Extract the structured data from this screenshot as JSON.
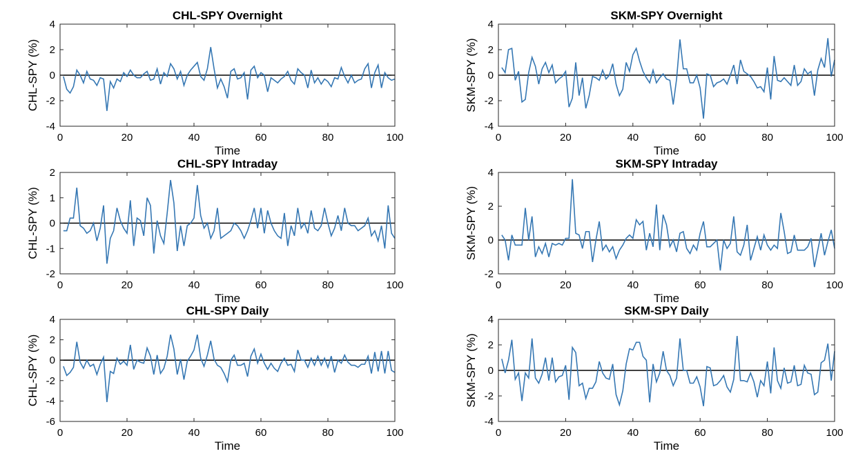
{
  "figure_title": "",
  "chart_data": [
    {
      "type": "line",
      "title": "CHL-SPY Overnight",
      "xlabel": "Time",
      "ylabel": "CHL-SPY (%)",
      "xlim": [
        0,
        100
      ],
      "ylim": [
        -4,
        4
      ],
      "xticks": [
        0,
        20,
        40,
        60,
        80,
        100
      ],
      "yticks": [
        -4,
        -2,
        0,
        2,
        4
      ],
      "line_color": "#3577B3",
      "zero_line_color": "#000000",
      "x": [
        1,
        2,
        3,
        4,
        5,
        6,
        7,
        8,
        9,
        10,
        11,
        12,
        13,
        14,
        15,
        16,
        17,
        18,
        19,
        20,
        21,
        22,
        23,
        24,
        25,
        26,
        27,
        28,
        29,
        30,
        31,
        32,
        33,
        34,
        35,
        36,
        37,
        38,
        39,
        40,
        41,
        42,
        43,
        44,
        45,
        46,
        47,
        48,
        49,
        50,
        51,
        52,
        53,
        54,
        55,
        56,
        57,
        58,
        59,
        60,
        61,
        62,
        63,
        64,
        65,
        66,
        67,
        68,
        69,
        70,
        71,
        72,
        73,
        74,
        75,
        76,
        77,
        78,
        79,
        80,
        81,
        82,
        83,
        84,
        85,
        86,
        87,
        88,
        89,
        90,
        91,
        92,
        93,
        94,
        95,
        96,
        97,
        98,
        99,
        100
      ],
      "values": [
        -0.1,
        -1.1,
        -1.4,
        -0.9,
        0.4,
        0.0,
        -0.6,
        0.3,
        -0.3,
        -0.4,
        -0.8,
        -0.2,
        -0.3,
        -2.8,
        -0.5,
        -1.0,
        -0.3,
        -0.5,
        0.2,
        -0.1,
        0.4,
        0.0,
        -0.2,
        -0.2,
        0.1,
        0.3,
        -0.4,
        -0.3,
        0.5,
        -0.7,
        0.2,
        -0.1,
        0.9,
        0.5,
        -0.3,
        0.3,
        -0.8,
        0.0,
        0.4,
        0.7,
        1.0,
        -0.1,
        -0.4,
        0.5,
        2.2,
        0.5,
        -1.0,
        -0.3,
        -0.9,
        -1.8,
        0.3,
        0.5,
        -0.3,
        -0.2,
        0.2,
        -1.9,
        0.4,
        0.7,
        -0.2,
        0.2,
        0.0,
        -1.3,
        -0.2,
        -0.4,
        -0.6,
        -0.3,
        -0.1,
        0.3,
        -0.4,
        -0.7,
        0.5,
        0.2,
        0.0,
        -1.0,
        0.4,
        -0.6,
        -0.2,
        -0.7,
        -0.3,
        -0.5,
        -0.9,
        -0.2,
        -0.3,
        0.6,
        -0.1,
        -0.6,
        0.0,
        -0.6,
        -0.4,
        -0.3,
        0.5,
        0.9,
        -1.0,
        0.2,
        0.8,
        -1.0,
        0.2,
        -0.2,
        -0.4,
        -0.3
      ]
    },
    {
      "type": "line",
      "title": "CHL-SPY Intraday",
      "xlabel": "Time",
      "ylabel": "CHL-SPY (%)",
      "xlim": [
        0,
        100
      ],
      "ylim": [
        -2,
        2
      ],
      "xticks": [
        0,
        20,
        40,
        60,
        80,
        100
      ],
      "yticks": [
        -2,
        -1,
        0,
        1,
        2
      ],
      "line_color": "#3577B3",
      "zero_line_color": "#000000",
      "x": [
        1,
        2,
        3,
        4,
        5,
        6,
        7,
        8,
        9,
        10,
        11,
        12,
        13,
        14,
        15,
        16,
        17,
        18,
        19,
        20,
        21,
        22,
        23,
        24,
        25,
        26,
        27,
        28,
        29,
        30,
        31,
        32,
        33,
        34,
        35,
        36,
        37,
        38,
        39,
        40,
        41,
        42,
        43,
        44,
        45,
        46,
        47,
        48,
        49,
        50,
        51,
        52,
        53,
        54,
        55,
        56,
        57,
        58,
        59,
        60,
        61,
        62,
        63,
        64,
        65,
        66,
        67,
        68,
        69,
        70,
        71,
        72,
        73,
        74,
        75,
        76,
        77,
        78,
        79,
        80,
        81,
        82,
        83,
        84,
        85,
        86,
        87,
        88,
        89,
        90,
        91,
        92,
        93,
        94,
        95,
        96,
        97,
        98,
        99,
        100
      ],
      "values": [
        -0.3,
        -0.3,
        0.2,
        0.2,
        1.4,
        -0.1,
        -0.2,
        -0.4,
        -0.3,
        0.0,
        -0.7,
        -0.2,
        0.7,
        -1.6,
        -0.6,
        -0.3,
        0.6,
        0.1,
        -0.2,
        -0.4,
        0.9,
        -0.9,
        0.2,
        0.1,
        -0.5,
        1.0,
        0.7,
        -1.2,
        0.1,
        -0.5,
        -0.8,
        0.4,
        1.7,
        0.8,
        -1.1,
        -0.1,
        -0.9,
        -0.1,
        0.0,
        0.2,
        1.5,
        0.3,
        -0.2,
        0.0,
        -0.6,
        -0.3,
        0.6,
        -0.6,
        -0.5,
        -0.4,
        -0.3,
        0.0,
        -0.1,
        -0.3,
        -0.6,
        -0.3,
        0.1,
        0.6,
        -0.2,
        0.6,
        -0.4,
        0.5,
        0.0,
        -0.3,
        -0.5,
        -0.6,
        0.4,
        -0.9,
        -0.1,
        -0.5,
        0.6,
        -0.2,
        0.0,
        -0.4,
        0.5,
        -0.2,
        -0.3,
        -0.1,
        0.6,
        0.0,
        -0.5,
        -0.2,
        0.3,
        -0.3,
        0.6,
        0.0,
        -0.1,
        -0.1,
        -0.3,
        -0.2,
        -0.1,
        0.2,
        -0.5,
        -0.3,
        -0.7,
        -0.1,
        -1.0,
        0.7,
        -0.4,
        -0.6
      ]
    },
    {
      "type": "line",
      "title": "CHL-SPY Daily",
      "xlabel": "Time",
      "ylabel": "CHL-SPY (%)",
      "xlim": [
        0,
        100
      ],
      "ylim": [
        -6,
        4
      ],
      "xticks": [
        0,
        20,
        40,
        60,
        80,
        100
      ],
      "yticks": [
        -6,
        -4,
        -2,
        0,
        2,
        4
      ],
      "line_color": "#3577B3",
      "zero_line_color": "#000000",
      "x": [
        1,
        2,
        3,
        4,
        5,
        6,
        7,
        8,
        9,
        10,
        11,
        12,
        13,
        14,
        15,
        16,
        17,
        18,
        19,
        20,
        21,
        22,
        23,
        24,
        25,
        26,
        27,
        28,
        29,
        30,
        31,
        32,
        33,
        34,
        35,
        36,
        37,
        38,
        39,
        40,
        41,
        42,
        43,
        44,
        45,
        46,
        47,
        48,
        49,
        50,
        51,
        52,
        53,
        54,
        55,
        56,
        57,
        58,
        59,
        60,
        61,
        62,
        63,
        64,
        65,
        66,
        67,
        68,
        69,
        70,
        71,
        72,
        73,
        74,
        75,
        76,
        77,
        78,
        79,
        80,
        81,
        82,
        83,
        84,
        85,
        86,
        87,
        88,
        89,
        90,
        91,
        92,
        93,
        94,
        95,
        96,
        97,
        98,
        99,
        100
      ],
      "values": [
        -0.6,
        -1.5,
        -1.2,
        -0.7,
        1.8,
        -0.2,
        -0.8,
        0.0,
        -0.6,
        -0.4,
        -1.4,
        -0.4,
        0.3,
        -4.1,
        -1.1,
        -1.3,
        0.2,
        -0.4,
        -0.1,
        -0.5,
        1.5,
        -0.9,
        0.0,
        -0.2,
        -0.3,
        1.2,
        0.4,
        -1.4,
        0.5,
        -1.3,
        -0.8,
        0.4,
        2.5,
        1.1,
        -1.4,
        0.1,
        -1.9,
        -0.1,
        0.4,
        1.0,
        2.5,
        0.2,
        -0.6,
        0.5,
        1.9,
        0.1,
        -0.5,
        -0.7,
        -1.3,
        -2.1,
        0.0,
        0.5,
        -0.5,
        -0.5,
        -0.3,
        -1.6,
        0.4,
        1.1,
        -0.3,
        0.6,
        -0.3,
        -0.9,
        -0.3,
        -0.8,
        -1.1,
        -0.3,
        0.2,
        -0.5,
        -0.4,
        -1.1,
        1.0,
        0.0,
        0.0,
        -0.7,
        0.2,
        -0.5,
        0.4,
        -0.5,
        0.2,
        -0.7,
        0.4,
        -1.2,
        0.0,
        -0.3,
        0.5,
        -0.2,
        -0.5,
        -0.5,
        -0.7,
        -0.4,
        -0.4,
        0.4,
        -1.3,
        0.8,
        -1.1,
        0.9,
        -1.3,
        0.9,
        -1.0,
        -1.2
      ]
    },
    {
      "type": "line",
      "title": "SKM-SPY Overnight",
      "xlabel": "Time",
      "ylabel": "SKM-SPY (%)",
      "xlim": [
        0,
        100
      ],
      "ylim": [
        -4,
        4
      ],
      "xticks": [
        0,
        20,
        40,
        60,
        80,
        100
      ],
      "yticks": [
        -4,
        -2,
        0,
        2,
        4
      ],
      "line_color": "#3577B3",
      "zero_line_color": "#000000",
      "x": [
        1,
        2,
        3,
        4,
        5,
        6,
        7,
        8,
        9,
        10,
        11,
        12,
        13,
        14,
        15,
        16,
        17,
        18,
        19,
        20,
        21,
        22,
        23,
        24,
        25,
        26,
        27,
        28,
        29,
        30,
        31,
        32,
        33,
        34,
        35,
        36,
        37,
        38,
        39,
        40,
        41,
        42,
        43,
        44,
        45,
        46,
        47,
        48,
        49,
        50,
        51,
        52,
        53,
        54,
        55,
        56,
        57,
        58,
        59,
        60,
        61,
        62,
        63,
        64,
        65,
        66,
        67,
        68,
        69,
        70,
        71,
        72,
        73,
        74,
        75,
        76,
        77,
        78,
        79,
        80,
        81,
        82,
        83,
        84,
        85,
        86,
        87,
        88,
        89,
        90,
        91,
        92,
        93,
        94,
        95,
        96,
        97,
        98,
        99,
        100
      ],
      "values": [
        0.6,
        0.2,
        2.0,
        2.1,
        -0.4,
        0.3,
        -2.1,
        -1.9,
        0.2,
        1.4,
        0.7,
        -0.7,
        0.5,
        1.0,
        0.2,
        0.8,
        -0.6,
        -0.3,
        -0.1,
        0.3,
        -2.5,
        -1.8,
        1.0,
        -1.6,
        -0.2,
        -2.6,
        -1.6,
        -0.1,
        -0.2,
        -0.4,
        0.4,
        -0.3,
        0.0,
        0.9,
        -0.7,
        -1.6,
        -1.1,
        1.0,
        0.3,
        1.6,
        2.1,
        1.1,
        0.3,
        -0.2,
        -0.6,
        0.4,
        -0.6,
        -0.2,
        0.1,
        -0.3,
        -0.4,
        -2.3,
        -0.3,
        2.8,
        0.5,
        0.5,
        -0.6,
        -0.6,
        0.0,
        -1.0,
        -3.4,
        0.1,
        0.0,
        -0.9,
        -0.6,
        -0.5,
        -0.3,
        -0.7,
        0.0,
        0.8,
        -0.7,
        1.2,
        0.3,
        0.1,
        -0.1,
        -0.5,
        -1.0,
        -0.9,
        -1.3,
        0.6,
        -1.9,
        1.5,
        -0.4,
        -0.5,
        -0.2,
        -0.5,
        -0.8,
        0.8,
        -0.8,
        -0.5,
        0.5,
        0.1,
        0.3,
        -1.6,
        0.4,
        1.3,
        0.6,
        2.9,
        -0.1,
        1.2
      ]
    },
    {
      "type": "line",
      "title": "SKM-SPY Intraday",
      "xlabel": "Time",
      "ylabel": "SKM-SPY (%)",
      "xlim": [
        0,
        100
      ],
      "ylim": [
        -2,
        4
      ],
      "xticks": [
        0,
        20,
        40,
        60,
        80,
        100
      ],
      "yticks": [
        -2,
        0,
        2,
        4
      ],
      "line_color": "#3577B3",
      "zero_line_color": "#000000",
      "x": [
        1,
        2,
        3,
        4,
        5,
        6,
        7,
        8,
        9,
        10,
        11,
        12,
        13,
        14,
        15,
        16,
        17,
        18,
        19,
        20,
        21,
        22,
        23,
        24,
        25,
        26,
        27,
        28,
        29,
        30,
        31,
        32,
        33,
        34,
        35,
        36,
        37,
        38,
        39,
        40,
        41,
        42,
        43,
        44,
        45,
        46,
        47,
        48,
        49,
        50,
        51,
        52,
        53,
        54,
        55,
        56,
        57,
        58,
        59,
        60,
        61,
        62,
        63,
        64,
        65,
        66,
        67,
        68,
        69,
        70,
        71,
        72,
        73,
        74,
        75,
        76,
        77,
        78,
        79,
        80,
        81,
        82,
        83,
        84,
        85,
        86,
        87,
        88,
        89,
        90,
        91,
        92,
        93,
        94,
        95,
        96,
        97,
        98,
        99,
        100
      ],
      "values": [
        0.3,
        0.0,
        -1.2,
        0.3,
        -0.3,
        -0.3,
        -0.3,
        1.9,
        0.0,
        1.4,
        -1.0,
        -0.4,
        -0.8,
        -0.2,
        -1.0,
        -0.2,
        -0.3,
        -0.2,
        -0.3,
        0.1,
        0.1,
        3.6,
        0.4,
        0.3,
        -0.5,
        0.5,
        0.5,
        -1.3,
        0.0,
        1.1,
        -0.6,
        -0.3,
        -0.7,
        -0.4,
        -1.1,
        -0.6,
        -0.3,
        0.1,
        0.3,
        0.1,
        1.2,
        0.9,
        1.1,
        -0.6,
        0.4,
        -0.4,
        2.1,
        -0.6,
        1.5,
        0.9,
        -0.4,
        0.0,
        -0.7,
        0.4,
        0.5,
        -0.5,
        -0.8,
        -0.3,
        -0.6,
        0.4,
        1.1,
        -0.4,
        -0.4,
        -0.2,
        0.0,
        -1.8,
        0.0,
        -0.5,
        -0.2,
        1.4,
        -0.7,
        -0.9,
        -0.3,
        0.9,
        -1.2,
        -0.5,
        0.2,
        -0.6,
        0.3,
        -0.3,
        -0.6,
        -0.3,
        -0.5,
        1.6,
        0.5,
        -0.8,
        -0.7,
        0.3,
        -0.6,
        -0.6,
        -0.6,
        -0.4,
        0.1,
        -1.6,
        -0.6,
        0.4,
        -0.9,
        -0.1,
        0.6,
        -0.5
      ]
    },
    {
      "type": "line",
      "title": "SKM-SPY Daily",
      "xlabel": "Time",
      "ylabel": "SKM-SPY (%)",
      "xlim": [
        0,
        100
      ],
      "ylim": [
        -4,
        4
      ],
      "xticks": [
        0,
        20,
        40,
        60,
        80,
        100
      ],
      "yticks": [
        -4,
        -2,
        0,
        2,
        4
      ],
      "line_color": "#3577B3",
      "zero_line_color": "#000000",
      "x": [
        1,
        2,
        3,
        4,
        5,
        6,
        7,
        8,
        9,
        10,
        11,
        12,
        13,
        14,
        15,
        16,
        17,
        18,
        19,
        20,
        21,
        22,
        23,
        24,
        25,
        26,
        27,
        28,
        29,
        30,
        31,
        32,
        33,
        34,
        35,
        36,
        37,
        38,
        39,
        40,
        41,
        42,
        43,
        44,
        45,
        46,
        47,
        48,
        49,
        50,
        51,
        52,
        53,
        54,
        55,
        56,
        57,
        58,
        59,
        60,
        61,
        62,
        63,
        64,
        65,
        66,
        67,
        68,
        69,
        70,
        71,
        72,
        73,
        74,
        75,
        76,
        77,
        78,
        79,
        80,
        81,
        82,
        83,
        84,
        85,
        86,
        87,
        88,
        89,
        90,
        91,
        92,
        93,
        94,
        95,
        96,
        97,
        98,
        99,
        100
      ],
      "values": [
        0.9,
        -0.2,
        0.8,
        2.4,
        -0.7,
        -0.2,
        -2.4,
        -0.2,
        -0.6,
        2.5,
        -0.6,
        -1.0,
        -0.3,
        1.0,
        -0.8,
        1.0,
        -0.9,
        -0.5,
        -0.4,
        0.4,
        -2.3,
        1.8,
        1.4,
        -1.2,
        -1.0,
        -2.2,
        -1.4,
        -1.4,
        -0.9,
        0.7,
        -0.2,
        -0.6,
        -0.7,
        0.5,
        -1.9,
        -2.7,
        -1.6,
        0.5,
        1.7,
        1.6,
        2.2,
        2.2,
        1.1,
        0.8,
        -2.5,
        0.5,
        -0.9,
        -0.2,
        1.5,
        0.0,
        -0.4,
        -1.2,
        -0.6,
        2.5,
        0.0,
        0.0,
        -1.0,
        -1.0,
        -0.5,
        -1.3,
        -2.8,
        0.3,
        0.2,
        -1.2,
        -1.1,
        -0.8,
        -0.4,
        -1.3,
        -1.7,
        -0.7,
        2.7,
        -0.8,
        -0.8,
        -0.9,
        -0.2,
        -0.9,
        -2.1,
        -0.8,
        -1.2,
        0.7,
        -1.8,
        1.8,
        -0.8,
        -1.4,
        0.2,
        -1.0,
        -0.9,
        0.4,
        -1.2,
        -1.1,
        0.4,
        -0.2,
        -0.3,
        -1.9,
        -1.7,
        0.6,
        0.8,
        2.1,
        -0.8,
        1.5
      ]
    }
  ]
}
